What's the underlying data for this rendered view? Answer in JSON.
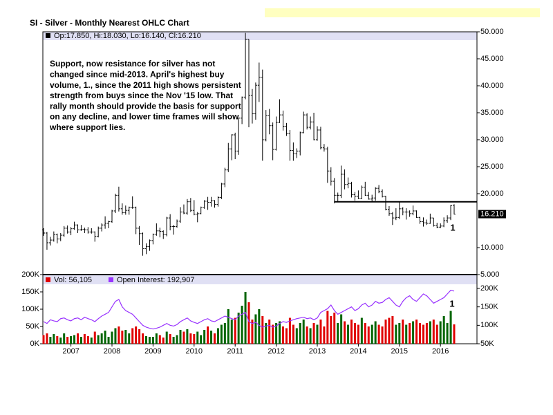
{
  "chart_data": {
    "type": "ohlc",
    "title": "SI - Silver - Monthly Nearest OHLC Chart",
    "info": "Op:17.850, Hi:18.030, Lo:16.140, Cl:16.210",
    "categories": [
      null,
      null,
      null,
      null,
      null,
      null,
      null,
      null,
      "2007",
      null,
      null,
      null,
      null,
      null,
      null,
      null,
      null,
      null,
      null,
      null,
      "2008",
      null,
      null,
      null,
      null,
      null,
      null,
      null,
      null,
      null,
      null,
      null,
      "2009",
      null,
      null,
      null,
      null,
      null,
      null,
      null,
      null,
      null,
      null,
      null,
      "2010",
      null,
      null,
      null,
      null,
      null,
      null,
      null,
      null,
      null,
      null,
      null,
      "2011",
      null,
      null,
      null,
      null,
      null,
      null,
      null,
      null,
      null,
      null,
      null,
      "2012",
      null,
      null,
      null,
      null,
      null,
      null,
      null,
      null,
      null,
      null,
      null,
      "2013",
      null,
      null,
      null,
      null,
      null,
      null,
      null,
      null,
      null,
      null,
      null,
      "2014",
      null,
      null,
      null,
      null,
      null,
      null,
      null,
      null,
      null,
      null,
      null,
      "2015",
      null,
      null,
      null,
      null,
      null,
      null,
      null,
      null,
      null,
      null,
      null,
      "2016",
      null,
      null,
      null,
      null
    ],
    "ohlc": [
      [
        13.3,
        13.6,
        12.2,
        12.7
      ],
      [
        12.7,
        12.9,
        9.6,
        10.9
      ],
      [
        10.9,
        12.0,
        10.4,
        11.4
      ],
      [
        11.4,
        13.0,
        11.1,
        12.4
      ],
      [
        12.4,
        12.6,
        10.8,
        11.6
      ],
      [
        11.6,
        12.7,
        11.2,
        12.3
      ],
      [
        12.3,
        14.0,
        12.0,
        13.6
      ],
      [
        13.6,
        14.1,
        12.6,
        12.9
      ],
      [
        12.9,
        13.8,
        12.3,
        13.5
      ],
      [
        13.5,
        14.8,
        13.3,
        14.2
      ],
      [
        14.2,
        14.3,
        12.7,
        13.3
      ],
      [
        13.3,
        14.2,
        13.1,
        13.4
      ],
      [
        13.4,
        13.7,
        12.7,
        13.3
      ],
      [
        13.3,
        13.8,
        12.6,
        12.9
      ],
      [
        12.9,
        13.6,
        12.6,
        12.9
      ],
      [
        12.9,
        13.0,
        11.1,
        12.1
      ],
      [
        12.1,
        13.9,
        11.9,
        13.6
      ],
      [
        13.6,
        14.5,
        13.0,
        14.2
      ],
      [
        14.2,
        15.8,
        13.5,
        14.5
      ],
      [
        14.5,
        15.0,
        13.6,
        14.8
      ],
      [
        14.8,
        17.0,
        14.6,
        16.8
      ],
      [
        16.8,
        20.0,
        16.4,
        19.7
      ],
      [
        19.7,
        21.3,
        16.7,
        17.2
      ],
      [
        17.2,
        18.2,
        16.1,
        16.5
      ],
      [
        16.5,
        17.8,
        16.1,
        16.9
      ],
      [
        16.9,
        17.6,
        16.1,
        17.5
      ],
      [
        17.5,
        19.5,
        17.2,
        17.4
      ],
      [
        17.4,
        17.6,
        12.5,
        13.6
      ],
      [
        13.6,
        14.0,
        10.5,
        12.6
      ],
      [
        12.6,
        12.8,
        8.5,
        9.8
      ],
      [
        9.8,
        10.8,
        8.8,
        10.2
      ],
      [
        10.2,
        11.5,
        9.4,
        11.3
      ],
      [
        11.3,
        12.6,
        10.6,
        12.5
      ],
      [
        12.5,
        14.5,
        12.2,
        13.1
      ],
      [
        13.1,
        13.7,
        11.9,
        13.0
      ],
      [
        13.0,
        13.2,
        11.6,
        12.4
      ],
      [
        12.4,
        15.7,
        12.1,
        15.5
      ],
      [
        15.5,
        16.2,
        13.2,
        13.9
      ],
      [
        13.9,
        14.2,
        12.4,
        13.9
      ],
      [
        13.9,
        15.2,
        13.7,
        14.9
      ],
      [
        14.9,
        17.5,
        14.6,
        16.6
      ],
      [
        16.6,
        18.0,
        16.2,
        16.4
      ],
      [
        16.4,
        19.0,
        16.1,
        18.5
      ],
      [
        18.5,
        19.2,
        16.6,
        16.9
      ],
      [
        16.9,
        18.8,
        16.0,
        16.2
      ],
      [
        16.2,
        16.6,
        14.7,
        16.3
      ],
      [
        16.3,
        17.6,
        16.2,
        17.5
      ],
      [
        17.5,
        18.8,
        17.2,
        18.6
      ],
      [
        18.6,
        19.4,
        17.0,
        18.4
      ],
      [
        18.4,
        19.4,
        17.6,
        18.7
      ],
      [
        18.7,
        18.8,
        17.4,
        18.0
      ],
      [
        18.0,
        19.5,
        17.6,
        19.3
      ],
      [
        19.3,
        22.0,
        19.0,
        21.8
      ],
      [
        21.8,
        24.8,
        21.2,
        24.4
      ],
      [
        24.4,
        29.4,
        24.0,
        28.3
      ],
      [
        28.3,
        31.0,
        26.2,
        30.9
      ],
      [
        30.9,
        31.3,
        26.4,
        27.9
      ],
      [
        27.9,
        34.0,
        27.2,
        34.0
      ],
      [
        34.0,
        38.0,
        32.9,
        37.9
      ],
      [
        37.9,
        49.8,
        37.5,
        48.6
      ],
      [
        48.6,
        48.6,
        32.3,
        38.2
      ],
      [
        38.2,
        39.4,
        33.0,
        34.8
      ],
      [
        34.8,
        40.6,
        33.7,
        40.1
      ],
      [
        40.1,
        44.3,
        37.0,
        41.6
      ],
      [
        41.6,
        43.0,
        26.1,
        30.0
      ],
      [
        30.0,
        35.5,
        29.7,
        34.5
      ],
      [
        34.5,
        35.7,
        31.0,
        32.6
      ],
      [
        32.6,
        33.2,
        26.2,
        28.2
      ],
      [
        28.2,
        34.3,
        28.0,
        33.2
      ],
      [
        33.2,
        37.5,
        33.1,
        34.6
      ],
      [
        34.6,
        35.4,
        31.7,
        32.5
      ],
      [
        32.5,
        33.1,
        30.7,
        31.1
      ],
      [
        31.1,
        31.8,
        26.1,
        28.0
      ],
      [
        28.0,
        29.5,
        26.1,
        27.4
      ],
      [
        27.4,
        28.4,
        26.6,
        27.9
      ],
      [
        27.9,
        31.5,
        27.1,
        31.3
      ],
      [
        31.3,
        35.2,
        31.2,
        34.6
      ],
      [
        34.6,
        34.9,
        31.9,
        32.3
      ],
      [
        32.3,
        34.3,
        31.9,
        33.3
      ],
      [
        33.3,
        35.0,
        29.9,
        30.0
      ],
      [
        30.0,
        32.5,
        29.8,
        31.8
      ],
      [
        31.8,
        32.4,
        28.2,
        28.5
      ],
      [
        28.5,
        29.2,
        27.8,
        28.3
      ],
      [
        28.3,
        28.7,
        22.0,
        24.2
      ],
      [
        24.2,
        24.9,
        21.5,
        22.3
      ],
      [
        22.3,
        22.9,
        18.2,
        19.7
      ],
      [
        19.7,
        20.2,
        18.6,
        19.7
      ],
      [
        19.7,
        25.2,
        19.2,
        23.6
      ],
      [
        23.6,
        24.5,
        20.8,
        21.7
      ],
      [
        21.7,
        23.0,
        21.0,
        21.9
      ],
      [
        21.9,
        22.2,
        19.3,
        19.8
      ],
      [
        19.8,
        20.3,
        18.7,
        19.5
      ],
      [
        19.5,
        20.6,
        19.0,
        19.1
      ],
      [
        19.1,
        21.5,
        19.0,
        21.2
      ],
      [
        21.2,
        22.2,
        19.6,
        19.7
      ],
      [
        19.7,
        20.3,
        18.9,
        19.0
      ],
      [
        19.0,
        19.8,
        18.6,
        19.2
      ],
      [
        19.2,
        21.2,
        18.7,
        21.0
      ],
      [
        21.0,
        21.6,
        20.1,
        20.4
      ],
      [
        20.4,
        20.8,
        19.3,
        19.5
      ],
      [
        19.5,
        19.6,
        16.9,
        17.1
      ],
      [
        17.1,
        17.7,
        15.9,
        16.3
      ],
      [
        16.3,
        16.6,
        14.2,
        15.5
      ],
      [
        15.5,
        17.3,
        15.1,
        15.6
      ],
      [
        15.6,
        18.5,
        15.3,
        17.2
      ],
      [
        17.2,
        17.5,
        16.0,
        16.6
      ],
      [
        16.6,
        17.3,
        15.2,
        16.6
      ],
      [
        16.6,
        16.9,
        15.7,
        16.3
      ],
      [
        16.3,
        17.8,
        16.0,
        16.8
      ],
      [
        16.8,
        16.9,
        15.5,
        15.6
      ],
      [
        15.6,
        15.7,
        14.4,
        14.8
      ],
      [
        14.8,
        15.6,
        13.9,
        14.6
      ],
      [
        14.6,
        15.2,
        14.2,
        14.5
      ],
      [
        14.5,
        16.3,
        14.4,
        15.5
      ],
      [
        15.5,
        15.5,
        13.9,
        14.1
      ],
      [
        14.1,
        14.6,
        13.6,
        13.8
      ],
      [
        13.8,
        14.5,
        13.6,
        14.0
      ],
      [
        14.0,
        15.6,
        13.8,
        15.0
      ],
      [
        15.0,
        16.0,
        14.6,
        15.5
      ],
      [
        15.5,
        17.9,
        15.1,
        17.8
      ],
      [
        17.85,
        18.03,
        16.14,
        16.21
      ]
    ],
    "color": "#000000",
    "ylim": [
      5,
      50
    ],
    "yticks": [
      {
        "value": 5,
        "label": "5.000"
      },
      {
        "value": 10,
        "label": "10.000"
      },
      {
        "value": 20,
        "label": "20.000"
      },
      {
        "value": 25,
        "label": "25.000"
      },
      {
        "value": 30,
        "label": "30.000"
      },
      {
        "value": 35,
        "label": "35.000"
      },
      {
        "value": 40,
        "label": "40.000"
      },
      {
        "value": 45,
        "label": "45.000"
      },
      {
        "value": 50,
        "label": "50.000"
      }
    ],
    "annotation_lines": [
      "Support, now resistance for silver has not",
      "changed since mid-2013.  April's highest buy",
      "volume, 1., since the 2011 high shows persistent",
      "strength from buys since the Nov '15 low.  That",
      "rally month should provide the basis for support",
      "on any decline, and lower time frames will show",
      "where support lies."
    ],
    "resistance": 18.5,
    "last_label": "16.210",
    "price_marker": "1",
    "volume_marker": "1",
    "volume": {
      "type": "bar",
      "legend": "Vol: 56,105",
      "legend_color": "#e00000",
      "up_color": "#006400",
      "down_color": "#e00000",
      "values": [
        25000,
        30000,
        20000,
        28000,
        22000,
        18000,
        30000,
        20000,
        22000,
        25000,
        30000,
        20000,
        28000,
        22000,
        18000,
        35000,
        25000,
        30000,
        38000,
        20000,
        35000,
        45000,
        50000,
        38000,
        40000,
        30000,
        45000,
        50000,
        42000,
        30000,
        22000,
        20000,
        20000,
        30000,
        25000,
        18000,
        35000,
        28000,
        20000,
        25000,
        40000,
        35000,
        42000,
        30000,
        28000,
        35000,
        25000,
        40000,
        50000,
        38000,
        30000,
        45000,
        55000,
        60000,
        100000,
        70000,
        75000,
        90000,
        110000,
        150000,
        120000,
        70000,
        85000,
        100000,
        80000,
        60000,
        70000,
        55000,
        60000,
        65000,
        50000,
        45000,
        75000,
        55000,
        45000,
        60000,
        70000,
        50000,
        45000,
        60000,
        55000,
        70000,
        50000,
        95000,
        80000,
        90000,
        60000,
        85000,
        65000,
        55000,
        70000,
        60000,
        55000,
        75000,
        60000,
        50000,
        55000,
        65000,
        55000,
        50000,
        70000,
        75000,
        80000,
        55000,
        60000,
        70000,
        55000,
        60000,
        65000,
        70000,
        60000,
        55000,
        60000,
        65000,
        70000,
        55000,
        65000,
        80000,
        60000,
        95000,
        56105
      ],
      "ylim": [
        0,
        200000
      ],
      "yticks": [
        {
          "value": 0,
          "label": "0K"
        },
        {
          "value": 50000,
          "label": "50K"
        },
        {
          "value": 100000,
          "label": "100K"
        },
        {
          "value": 150000,
          "label": "150K"
        },
        {
          "value": 200000,
          "label": "200K"
        }
      ]
    },
    "open_interest": {
      "type": "line",
      "legend": "Open Interest: 192,907",
      "color": "#9933ff",
      "axis": "y2",
      "values": [
        110000,
        105000,
        115000,
        112000,
        110000,
        118000,
        120000,
        115000,
        112000,
        118000,
        120000,
        115000,
        122000,
        118000,
        115000,
        110000,
        118000,
        125000,
        130000,
        135000,
        150000,
        165000,
        170000,
        150000,
        140000,
        135000,
        130000,
        120000,
        110000,
        100000,
        95000,
        92000,
        90000,
        92000,
        95000,
        100000,
        105000,
        100000,
        98000,
        102000,
        110000,
        115000,
        120000,
        112000,
        108000,
        105000,
        110000,
        115000,
        118000,
        112000,
        110000,
        115000,
        120000,
        125000,
        122000,
        118000,
        115000,
        125000,
        130000,
        135000,
        110000,
        105000,
        108000,
        100000,
        95000,
        98000,
        100000,
        95000,
        98000,
        105000,
        110000,
        108000,
        112000,
        115000,
        118000,
        120000,
        122000,
        118000,
        120000,
        115000,
        120000,
        135000,
        140000,
        145000,
        155000,
        140000,
        130000,
        135000,
        140000,
        145000,
        150000,
        140000,
        145000,
        155000,
        160000,
        150000,
        155000,
        165000,
        160000,
        162000,
        170000,
        175000,
        165000,
        155000,
        150000,
        165000,
        175000,
        180000,
        170000,
        165000,
        175000,
        185000,
        180000,
        170000,
        160000,
        165000,
        170000,
        175000,
        185000,
        195000,
        192907
      ],
      "y2lim": [
        50000,
        237500
      ],
      "y2ticks": [
        {
          "value": 50000,
          "label": "50K"
        },
        {
          "value": 100000,
          "label": "100K"
        },
        {
          "value": 150000,
          "label": "150K"
        },
        {
          "value": 200000,
          "label": "200K"
        }
      ]
    }
  }
}
